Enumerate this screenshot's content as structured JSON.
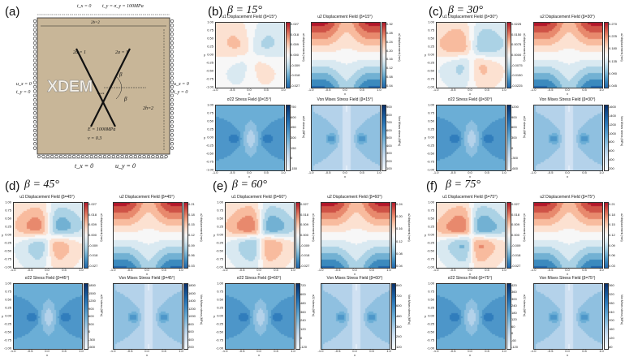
{
  "panel_a": {
    "letter": "(a)",
    "top_bc_1": "t_x = 0",
    "top_bc_2": "t_y = σ_y = 100MPa",
    "top_dim": "2b=2",
    "left_bc_1": "u_x = 0",
    "left_bc_2": "t_y = 0",
    "right_bc_1": "u_x = 0",
    "right_bc_2": "t_y = 0",
    "crack_len_1": "2a = 1",
    "crack_len_2": "2a = 1",
    "height_dim": "2h=2",
    "beta_upper": "β",
    "beta_lower": "β",
    "crack_label": "Crack",
    "watermark": "XDEM",
    "material_E": "E = 1000MPa",
    "material_nu": "ν = 0.3",
    "bottom_bc_1": "t_x = 0",
    "bottom_bc_2": "u_y = 0"
  },
  "colors": {
    "plate": "#c8b698",
    "support": "#222222"
  },
  "panels": [
    {
      "letter": "(b)",
      "beta": "β = 15°",
      "plots": [
        {
          "title": "u1 Displacement Field (β=15°)",
          "kind": "u1",
          "ticks": [
            "0.027",
            "0.018",
            "0.009",
            "0.000",
            "-0.009",
            "-0.018",
            "-0.027"
          ],
          "cbar_label": "u1 displacement (mm)"
        },
        {
          "title": "u2 Displacement Field (β=15°)",
          "kind": "u2",
          "ticks": [
            "0.32",
            "0.28",
            "0.24",
            "0.20",
            "0.16",
            "0.12",
            "0.08",
            "0.04"
          ],
          "cbar_label": "u2 displacement (mm)"
        },
        {
          "title": "σ22 Stress Field (β=15°)",
          "kind": "s22",
          "ticks": [
            "750",
            "600",
            "450",
            "300",
            "150",
            "0",
            "-150"
          ],
          "cbar_label": "σ22 stress (MPa)"
        },
        {
          "title": "Von Mises Stress Field (β=15°)",
          "kind": "vm",
          "ticks": [
            "900",
            "800",
            "700",
            "600",
            "500",
            "400",
            "300",
            "200",
            "100"
          ],
          "cbar_label": "Von Mises stress (MPa)"
        }
      ]
    },
    {
      "letter": "(c)",
      "beta": "β = 30°",
      "plots": [
        {
          "title": "u1 Displacement Field (β=30°)",
          "kind": "u1",
          "ticks": [
            "0.0225",
            "0.0150",
            "0.0075",
            "0.0000",
            "-0.0075",
            "-0.0150",
            "-0.0225"
          ],
          "cbar_label": "u1 displacement (mm)"
        },
        {
          "title": "u2 Displacement Field (β=30°)",
          "kind": "u2",
          "ticks": [
            "0.270",
            "0.225",
            "0.180",
            "0.135",
            "0.090",
            "0.045"
          ],
          "cbar_label": "u2 displacement (mm)"
        },
        {
          "title": "σ22 Stress Field (β=30°)",
          "kind": "s22",
          "ticks": [
            "1200",
            "900",
            "600",
            "300",
            "0",
            "-300",
            "-600"
          ],
          "cbar_label": "σ22 stress (MPa)"
        },
        {
          "title": "Von Mises Stress Field (β=30°)",
          "kind": "vm",
          "ticks": [
            "1600",
            "1400",
            "1200",
            "1000",
            "800",
            "600",
            "400",
            "200"
          ],
          "cbar_label": "Von Mises stress (MPa)"
        }
      ]
    },
    {
      "letter": "(d)",
      "beta": "β = 45°",
      "plots": [
        {
          "title": "u1 Displacement Field (β=45°)",
          "kind": "u1",
          "ticks": [
            "0.027",
            "0.018",
            "0.009",
            "0.000",
            "-0.009",
            "-0.018",
            "-0.027"
          ],
          "cbar_label": "u1 displacement (mm)"
        },
        {
          "title": "u2 Displacement Field (β=45°)",
          "kind": "u2",
          "ticks": [
            "0.21",
            "0.18",
            "0.15",
            "0.12",
            "0.09",
            "0.06",
            "0.03"
          ],
          "cbar_label": "u2 displacement (mm)"
        },
        {
          "title": "σ22 Stress Field (β=45°)",
          "kind": "s22",
          "ticks": [
            "1800",
            "1500",
            "1200",
            "900",
            "600",
            "300",
            "0",
            "-300",
            "-600"
          ],
          "cbar_label": "σ22 stress (MPa)"
        },
        {
          "title": "Von Mises Stress Field (β=45°)",
          "kind": "vm",
          "ticks": [
            "1800",
            "1600",
            "1400",
            "1200",
            "1000",
            "800",
            "600",
            "400",
            "200"
          ],
          "cbar_label": "Von Mises stress (MPa)"
        }
      ]
    },
    {
      "letter": "(e)",
      "beta": "β = 60°",
      "plots": [
        {
          "title": "u1 Displacement Field (β=60°)",
          "kind": "u1",
          "ticks": [
            "0.027",
            "0.018",
            "0.009",
            "0.000",
            "-0.009",
            "-0.018",
            "-0.027"
          ],
          "cbar_label": "u1 displacement (mm)"
        },
        {
          "title": "u2 Displacement Field (β=60°)",
          "kind": "u2",
          "ticks": [
            "0.24",
            "0.20",
            "0.16",
            "0.12",
            "0.08",
            "0.04"
          ],
          "cbar_label": "u2 displacement (mm)"
        },
        {
          "title": "σ22 Stress Field (β=60°)",
          "kind": "s22",
          "ticks": [
            "720",
            "600",
            "480",
            "360",
            "240",
            "120",
            "0",
            "-120"
          ],
          "cbar_label": "σ22 stress (MPa)"
        },
        {
          "title": "Von Mises Stress Field (β=60°)",
          "kind": "vm",
          "ticks": [
            "840",
            "720",
            "600",
            "480",
            "360",
            "240",
            "120"
          ],
          "cbar_label": "Von Mises stress (MPa)"
        }
      ]
    },
    {
      "letter": "(f)",
      "beta": "β = 75°",
      "plots": [
        {
          "title": "u1 Displacement Field (β=75°)",
          "kind": "u1",
          "ticks": [
            "0.027",
            "0.018",
            "0.009",
            "0.000",
            "-0.009",
            "-0.018",
            "-0.027"
          ],
          "cbar_label": "u1 displacement (mm)"
        },
        {
          "title": "u2 Displacement Field (β=75°)",
          "kind": "u2",
          "ticks": [
            "0.21",
            "0.18",
            "0.15",
            "0.12",
            "0.09",
            "0.06",
            "0.03"
          ],
          "cbar_label": "u2 displacement (mm)"
        },
        {
          "title": "σ22 Stress Field (β=75°)",
          "kind": "s22",
          "ticks": [
            "420",
            "360",
            "300",
            "240",
            "180",
            "120",
            "60",
            "0",
            "-60",
            "-120"
          ],
          "cbar_label": "σ22 stress (MPa)"
        },
        {
          "title": "Von Mises Stress Field (β=75°)",
          "kind": "vm",
          "ticks": [
            "360",
            "320",
            "280",
            "240",
            "200",
            "160",
            "120",
            "80"
          ],
          "cbar_label": "Von Mises stress (MPa)"
        }
      ]
    }
  ],
  "axes": {
    "xticks": [
      "-1.0",
      "-0.5",
      "0.0",
      "0.5",
      "1.0"
    ],
    "yticks": [
      "1.00",
      "0.75",
      "0.50",
      "0.25",
      "0.00",
      "-0.25",
      "-0.50",
      "-0.75",
      "-1.00"
    ],
    "xlabel": "x",
    "ylabel": "y"
  }
}
